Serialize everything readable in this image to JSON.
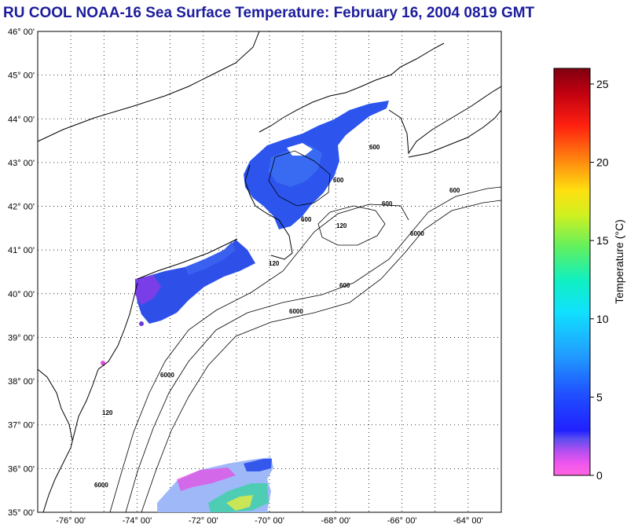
{
  "title": "RU COOL  NOAA-16  Sea Surface Temperature:  February 16, 2004 0819 GMT",
  "map": {
    "lon_range": [
      -77.0,
      -63.0
    ],
    "lat_range": [
      35.0,
      46.0
    ],
    "grid": "dotted",
    "lat_labels": [
      "46° 00'",
      "45° 00'",
      "44° 00'",
      "43° 00'",
      "42° 00'",
      "41° 00'",
      "40° 00'",
      "39° 00'",
      "38° 00'",
      "37° 00'",
      "36° 00'",
      "35° 00'"
    ],
    "lon_labels": [
      "-76° 00'",
      "-74° 00'",
      "-72° 00'",
      "-70° 00'",
      "-68° 00'",
      "-66° 00'",
      "-64° 00'"
    ],
    "depth_labels": [
      "600",
      "600",
      "600",
      "600",
      "600",
      "600",
      "6000",
      "6000",
      "6000",
      "6000",
      "120",
      "120",
      "120"
    ]
  },
  "colorbar": {
    "label": "Temperature (°C)",
    "min": 0,
    "max": 26,
    "ticks": [
      "0",
      "5",
      "10",
      "15",
      "20",
      "25"
    ],
    "tick_values": [
      0,
      5,
      10,
      15,
      20,
      25
    ]
  },
  "colors": {
    "title": "#1c1c9c",
    "coast": "#000000",
    "sst_cold": "#2d4cf0",
    "sst_warm": "#e84de0"
  }
}
